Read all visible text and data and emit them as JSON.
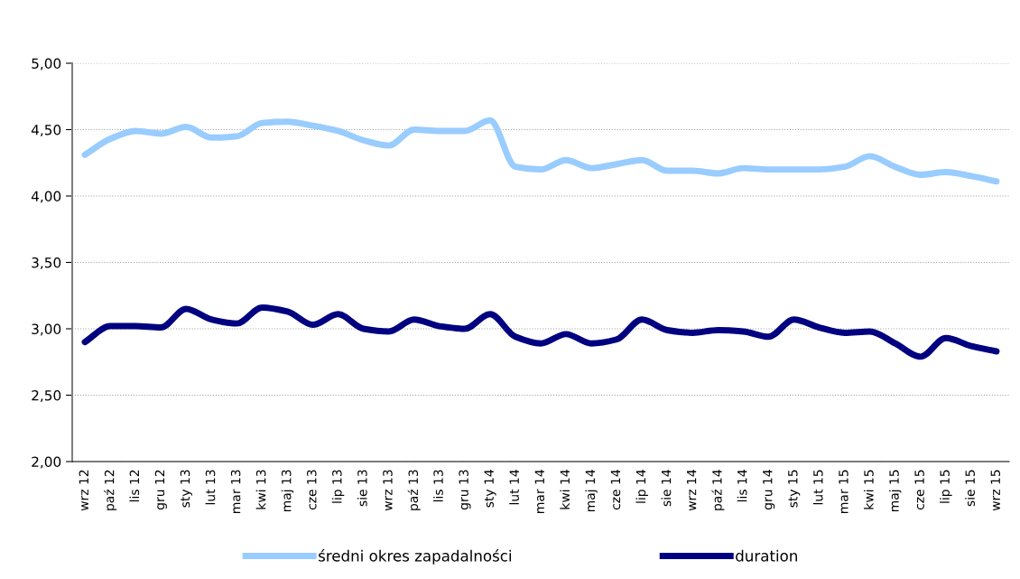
{
  "chart_data": {
    "type": "line",
    "categories": [
      "wrz 12",
      "paź 12",
      "lis 12",
      "gru 12",
      "sty 13",
      "lut 13",
      "mar 13",
      "kwi 13",
      "maj 13",
      "cze 13",
      "lip 13",
      "sie 13",
      "wrz 13",
      "paź 13",
      "lis 13",
      "gru 13",
      "sty 14",
      "lut 14",
      "mar 14",
      "kwi 14",
      "maj 14",
      "cze 14",
      "lip 14",
      "sie 14",
      "wrz 14",
      "paź 14",
      "lis 14",
      "gru 14",
      "sty 15",
      "lut 15",
      "mar 15",
      "kwi 15",
      "maj 15",
      "cze 15",
      "lip 15",
      "sie 15",
      "wrz 15"
    ],
    "series": [
      {
        "name": "średni okres zapadalności",
        "color": "#99ccff",
        "values": [
          4.31,
          4.43,
          4.49,
          4.47,
          4.52,
          4.44,
          4.45,
          4.55,
          4.56,
          4.53,
          4.49,
          4.42,
          4.38,
          4.5,
          4.49,
          4.49,
          4.57,
          4.22,
          4.2,
          4.27,
          4.21,
          4.24,
          4.27,
          4.19,
          4.19,
          4.17,
          4.21,
          4.2,
          4.2,
          4.2,
          4.22,
          4.3,
          4.22,
          4.16,
          4.18,
          4.15,
          4.11
        ]
      },
      {
        "name": "duration",
        "color": "#000080",
        "values": [
          2.9,
          3.02,
          3.02,
          3.01,
          3.15,
          3.07,
          3.04,
          3.16,
          3.13,
          3.03,
          3.11,
          3.0,
          2.98,
          3.07,
          3.02,
          3.0,
          3.11,
          2.94,
          2.89,
          2.96,
          2.89,
          2.92,
          3.07,
          2.99,
          2.97,
          2.99,
          2.98,
          2.94,
          3.07,
          3.01,
          2.97,
          2.98,
          2.89,
          2.79,
          2.93,
          2.87,
          2.83
        ]
      }
    ],
    "ylim": [
      2,
      5
    ],
    "yticks": [
      {
        "value": 2,
        "label": "2,00"
      },
      {
        "value": 2.5,
        "label": "2,50"
      },
      {
        "value": 3,
        "label": "3,00"
      },
      {
        "value": 3.5,
        "label": "3,50"
      },
      {
        "value": 4,
        "label": "4,00"
      },
      {
        "value": 4.5,
        "label": "4,50"
      },
      {
        "value": 5,
        "label": "5,00"
      }
    ],
    "grid": "y",
    "legend": "bottom",
    "marker": "none",
    "line_style": "solid"
  }
}
